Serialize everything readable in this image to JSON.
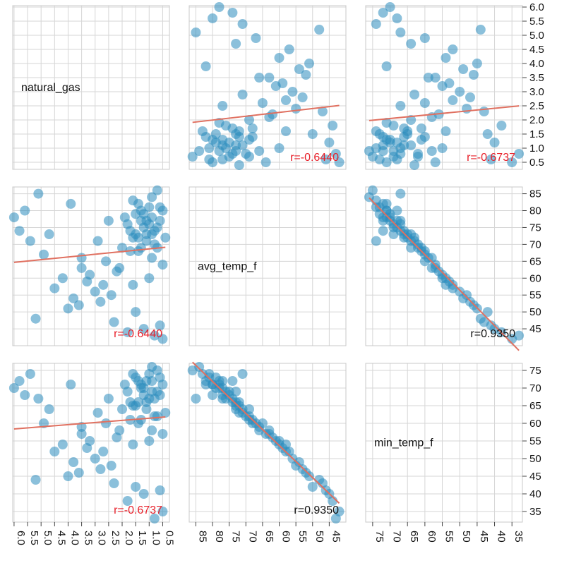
{
  "chart_data": {
    "type": "scatter_matrix",
    "variables": [
      "natural_gas",
      "avg_temp_f",
      "min_temp_f"
    ],
    "ranges": {
      "natural_gas": [
        0.25,
        6.05
      ],
      "avg_temp_f": [
        40,
        87
      ],
      "min_temp_f": [
        32,
        77
      ]
    },
    "ticks": {
      "natural_gas": [
        "0.5",
        "1.0",
        "1.5",
        "2.0",
        "2.5",
        "3.0",
        "3.5",
        "4.0",
        "4.5",
        "5.0",
        "5.5",
        "6.0"
      ],
      "avg_temp_f": [
        "45",
        "50",
        "55",
        "60",
        "65",
        "70",
        "75",
        "80",
        "85"
      ],
      "min_temp_f": [
        "35",
        "40",
        "45",
        "50",
        "55",
        "60",
        "65",
        "70",
        "75"
      ]
    },
    "x_reversed": true,
    "grid": true,
    "correlations": [
      {
        "row": 0,
        "col": 1,
        "text": "r=-0.6440",
        "warn": true
      },
      {
        "row": 0,
        "col": 2,
        "text": "r=-0.6737",
        "warn": true
      },
      {
        "row": 1,
        "col": 0,
        "text": "r=-0.6440",
        "warn": true
      },
      {
        "row": 1,
        "col": 2,
        "text": "r=0.9350",
        "warn": false
      },
      {
        "row": 2,
        "col": 0,
        "text": "r=-0.6737",
        "warn": true
      },
      {
        "row": 2,
        "col": 1,
        "text": "r=0.9350",
        "warn": false
      }
    ],
    "points": [
      [
        6.0,
        78,
        70
      ],
      [
        5.8,
        74,
        72
      ],
      [
        5.6,
        80,
        68
      ],
      [
        5.4,
        71,
        74
      ],
      [
        5.1,
        85,
        67
      ],
      [
        4.9,
        67,
        60
      ],
      [
        4.7,
        73,
        64
      ],
      [
        3.9,
        82,
        71
      ],
      [
        3.5,
        63,
        57
      ],
      [
        3.5,
        66,
        59
      ],
      [
        3.2,
        61,
        55
      ],
      [
        2.9,
        71,
        63
      ],
      [
        2.7,
        58,
        52
      ],
      [
        2.6,
        65,
        60
      ],
      [
        2.5,
        77,
        67
      ],
      [
        2.4,
        55,
        48
      ],
      [
        2.0,
        69,
        64
      ],
      [
        1.8,
        76,
        69
      ],
      [
        1.7,
        74,
        66
      ],
      [
        1.6,
        72,
        65
      ],
      [
        1.5,
        79,
        73
      ],
      [
        1.4,
        68,
        60
      ],
      [
        1.3,
        80,
        71
      ],
      [
        1.2,
        75,
        68
      ],
      [
        1.1,
        73,
        66
      ],
      [
        1.0,
        81,
        74
      ],
      [
        0.9,
        84,
        76
      ],
      [
        0.8,
        70,
        62
      ],
      [
        0.7,
        86,
        75
      ],
      [
        0.6,
        77,
        68
      ],
      [
        0.5,
        64,
        57
      ],
      [
        0.4,
        72,
        63
      ],
      [
        1.9,
        78,
        71
      ],
      [
        1.6,
        83,
        74
      ],
      [
        1.3,
        69,
        61
      ],
      [
        1.0,
        76,
        67
      ],
      [
        0.9,
        66,
        58
      ],
      [
        1.4,
        82,
        72
      ],
      [
        0.8,
        74,
        67
      ],
      [
        1.2,
        79,
        70
      ],
      [
        0.6,
        81,
        73
      ],
      [
        1.1,
        71,
        64
      ],
      [
        1.5,
        73,
        65
      ],
      [
        0.7,
        75,
        69
      ],
      [
        1.3,
        77,
        70
      ],
      [
        0.5,
        80,
        71
      ],
      [
        1.7,
        68,
        61
      ],
      [
        0.9,
        78,
        72
      ],
      [
        4.5,
        57,
        52
      ],
      [
        4.2,
        60,
        54
      ],
      [
        3.8,
        54,
        49
      ],
      [
        3.0,
        56,
        50
      ],
      [
        2.3,
        47,
        43
      ],
      [
        1.8,
        44,
        38
      ],
      [
        1.2,
        45,
        40
      ],
      [
        0.6,
        46,
        41
      ],
      [
        5.2,
        48,
        44
      ],
      [
        4.0,
        51,
        45
      ],
      [
        3.6,
        52,
        46
      ],
      [
        2.8,
        53,
        47
      ],
      [
        3.3,
        59,
        53
      ],
      [
        2.2,
        62,
        56
      ],
      [
        1.6,
        58,
        54
      ],
      [
        1.0,
        60,
        55
      ],
      [
        0.5,
        42,
        35
      ],
      [
        0.8,
        43,
        33
      ],
      [
        1.5,
        50,
        42
      ],
      [
        2.1,
        63,
        58
      ],
      [
        0.7,
        69,
        62
      ],
      [
        1.4,
        72,
        66
      ],
      [
        1.1,
        77,
        72
      ],
      [
        0.9,
        73,
        69
      ]
    ]
  }
}
